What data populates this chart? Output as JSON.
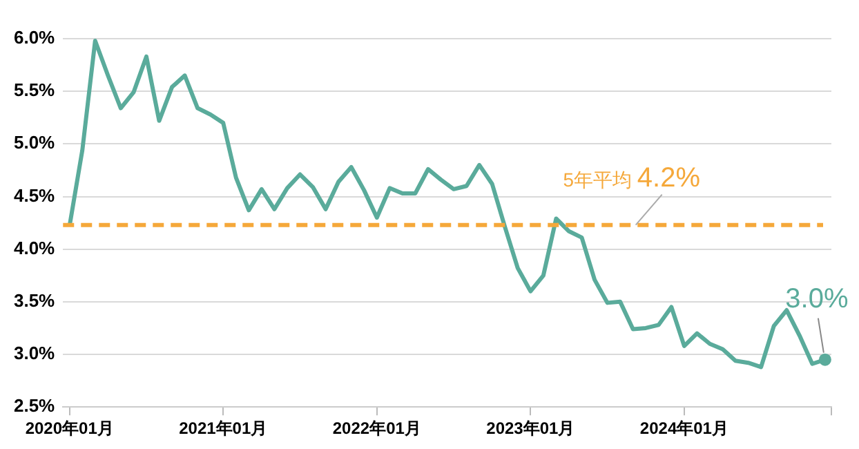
{
  "chart_data": {
    "type": "line",
    "x": [
      "2020-01",
      "2020-02",
      "2020-03",
      "2020-04",
      "2020-05",
      "2020-06",
      "2020-07",
      "2020-08",
      "2020-09",
      "2020-10",
      "2020-11",
      "2020-12",
      "2021-01",
      "2021-02",
      "2021-03",
      "2021-04",
      "2021-05",
      "2021-06",
      "2021-07",
      "2021-08",
      "2021-09",
      "2021-10",
      "2021-11",
      "2021-12",
      "2022-01",
      "2022-02",
      "2022-03",
      "2022-04",
      "2022-05",
      "2022-06",
      "2022-07",
      "2022-08",
      "2022-09",
      "2022-10",
      "2022-11",
      "2022-12",
      "2023-01",
      "2023-02",
      "2023-03",
      "2023-04",
      "2023-05",
      "2023-06",
      "2023-07",
      "2023-08",
      "2023-09",
      "2023-10",
      "2023-11",
      "2023-12",
      "2024-01",
      "2024-02",
      "2024-03",
      "2024-04",
      "2024-05",
      "2024-06",
      "2024-07",
      "2024-08",
      "2024-09",
      "2024-10",
      "2024-11",
      "2024-12"
    ],
    "series": [
      {
        "color": "#5aab9b",
        "values": [
          4.22,
          4.94,
          5.98,
          5.65,
          5.34,
          5.49,
          5.83,
          5.22,
          5.54,
          5.65,
          5.34,
          5.28,
          5.2,
          4.68,
          4.37,
          4.57,
          4.38,
          4.58,
          4.71,
          4.59,
          4.38,
          4.64,
          4.78,
          4.56,
          4.3,
          4.58,
          4.53,
          4.53,
          4.76,
          4.66,
          4.57,
          4.6,
          4.8,
          4.62,
          4.21,
          3.82,
          3.6,
          3.75,
          4.29,
          4.17,
          4.11,
          3.71,
          3.49,
          3.5,
          3.24,
          3.25,
          3.28,
          3.45,
          3.08,
          3.2,
          3.1,
          3.05,
          2.94,
          2.92,
          2.88,
          3.27,
          3.42,
          3.18,
          2.91,
          2.95
        ]
      }
    ],
    "xlim": [
      "2019-12-16",
      "2024-12-16"
    ],
    "xticks": [
      {
        "value": "2020-01",
        "label": "2020年01月"
      },
      {
        "value": "2021-01",
        "label": "2021年01月"
      },
      {
        "value": "2022-01",
        "label": "2022年01月"
      },
      {
        "value": "2023-01",
        "label": "2023年01月"
      },
      {
        "value": "2024-01",
        "label": "2024年01月"
      },
      {
        "value": "2024-12-16",
        "label": null
      }
    ],
    "ylim": [
      2.5,
      6.0
    ],
    "yticks": [
      {
        "value": 2.5,
        "label": "2.5%"
      },
      {
        "value": 3.0,
        "label": "3.0%"
      },
      {
        "value": 3.5,
        "label": "3.5%"
      },
      {
        "value": 4.0,
        "label": "4.0%"
      },
      {
        "value": 4.5,
        "label": "4.5%"
      },
      {
        "value": 5.0,
        "label": "5.0%"
      },
      {
        "value": 5.5,
        "label": "5.5%"
      },
      {
        "value": 6.0,
        "label": "6.0%"
      }
    ],
    "grid": "y",
    "marker": "none",
    "line_style": "solid",
    "legend": false,
    "ref_lines": [
      {
        "axis": "y",
        "value": 4.23,
        "label": "5年平均 4.2%",
        "color": "#f5a83a",
        "line_style": "dashed"
      }
    ],
    "annotations": [
      {
        "text": "3.0%",
        "x": "2024-12",
        "y": 2.95
      }
    ]
  }
}
